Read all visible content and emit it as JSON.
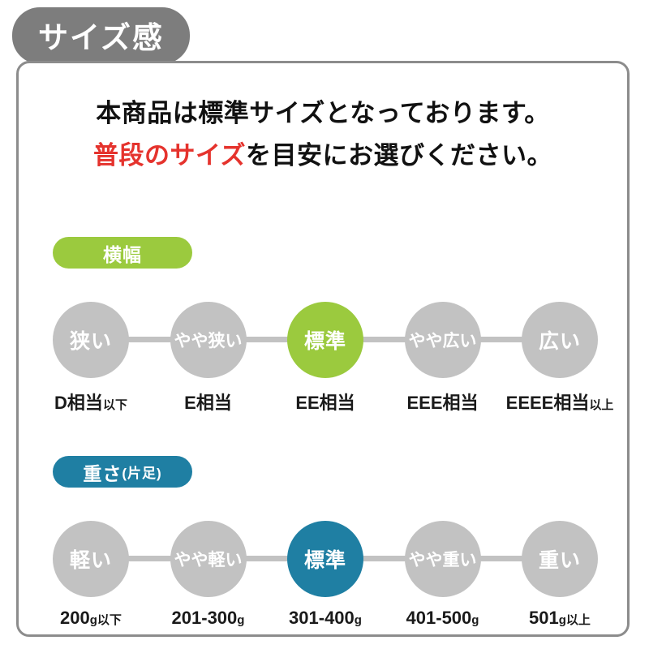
{
  "badge": {
    "title": "サイズ感"
  },
  "intro": {
    "line1": "本商品は標準サイズとなっております。",
    "line2_highlight": "普段のサイズ",
    "line2_rest": "を目安にお選びください。",
    "highlight_color": "#e5332d"
  },
  "colors": {
    "title_badge_gray": "#7d7d7d",
    "circle_gray": "#c2c2c2",
    "card_border": "#8c8c8c",
    "width_accent": "#9bca3e",
    "weight_accent": "#1f7fa3"
  },
  "sections": [
    {
      "badge": "横幅",
      "badge_note": "",
      "accent": "#9bca3e",
      "steps": [
        {
          "label": "狭い",
          "value": "D相当",
          "value_note": "以下",
          "active": false
        },
        {
          "label": "やや狭い",
          "value": "E相当",
          "value_note": "",
          "active": false
        },
        {
          "label": "標準",
          "value": "EE相当",
          "value_note": "",
          "active": true
        },
        {
          "label": "やや広い",
          "value": "EEE相当",
          "value_note": "",
          "active": false
        },
        {
          "label": "広い",
          "value": "EEEE相当",
          "value_note": "以上",
          "active": false
        }
      ]
    },
    {
      "badge": "重さ",
      "badge_note": "(片足)",
      "accent": "#1f7fa3",
      "steps": [
        {
          "label": "軽い",
          "value": "200",
          "value_note": "g以下",
          "active": false
        },
        {
          "label": "やや軽い",
          "value": "201-300",
          "value_note": "g",
          "active": false
        },
        {
          "label": "標準",
          "value": "301-400",
          "value_note": "g",
          "active": true
        },
        {
          "label": "やや重い",
          "value": "401-500",
          "value_note": "g",
          "active": false
        },
        {
          "label": "重い",
          "value": "501",
          "value_note": "g以上",
          "active": false
        }
      ]
    }
  ]
}
